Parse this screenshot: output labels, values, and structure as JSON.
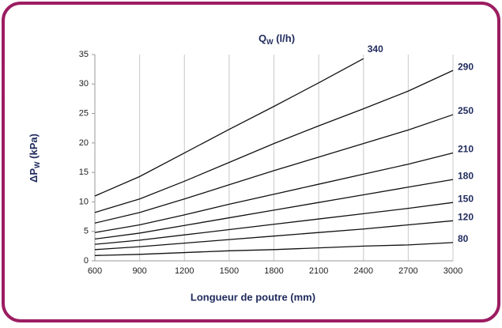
{
  "chart_data": {
    "type": "line",
    "title": {
      "main": "Q",
      "sub": "W",
      "rest": " (l/h)"
    },
    "y_label": {
      "main": "ΔP",
      "sub": "W",
      "rest": " (kPa)"
    },
    "x_label": "Longueur de poutre (mm)",
    "x": [
      600,
      900,
      1200,
      1500,
      1800,
      2100,
      2400,
      2700,
      3000
    ],
    "series": [
      {
        "name": "340",
        "color": "#111111",
        "values": [
          11,
          14.3,
          18.3,
          22.3,
          26.2,
          30.2,
          34.3,
          null,
          null
        ]
      },
      {
        "name": "290",
        "color": "#111111",
        "values": [
          8.2,
          10.5,
          13.5,
          16.7,
          19.9,
          22.9,
          25.8,
          28.8,
          32.3
        ]
      },
      {
        "name": "250",
        "color": "#111111",
        "values": [
          6.4,
          8.2,
          10.5,
          12.9,
          15.3,
          17.6,
          19.9,
          22.2,
          24.8
        ]
      },
      {
        "name": "210",
        "color": "#111111",
        "values": [
          4.8,
          6.1,
          7.8,
          9.6,
          11.3,
          13.0,
          14.7,
          16.4,
          18.3
        ]
      },
      {
        "name": "180",
        "color": "#111111",
        "values": [
          3.7,
          4.7,
          6.0,
          7.3,
          8.6,
          9.9,
          11.2,
          12.5,
          13.8
        ]
      },
      {
        "name": "150",
        "color": "#111111",
        "values": [
          2.8,
          3.5,
          4.4,
          5.3,
          6.2,
          7.1,
          8.0,
          8.9,
          9.9
        ]
      },
      {
        "name": "120",
        "color": "#111111",
        "values": [
          1.9,
          2.4,
          3.0,
          3.6,
          4.2,
          4.8,
          5.4,
          6.1,
          6.8
        ]
      },
      {
        "name": "80",
        "color": "#111111",
        "values": [
          0.9,
          1.1,
          1.4,
          1.7,
          1.9,
          2.2,
          2.5,
          2.7,
          3.1
        ]
      }
    ],
    "xlim": [
      600,
      3000
    ],
    "xticks": [
      600,
      900,
      1200,
      1500,
      1800,
      2100,
      2400,
      2700,
      3000
    ],
    "ylim": [
      0,
      35
    ],
    "yticks": [
      0,
      5,
      10,
      15,
      20,
      25,
      30,
      35
    ],
    "grid": "x"
  }
}
